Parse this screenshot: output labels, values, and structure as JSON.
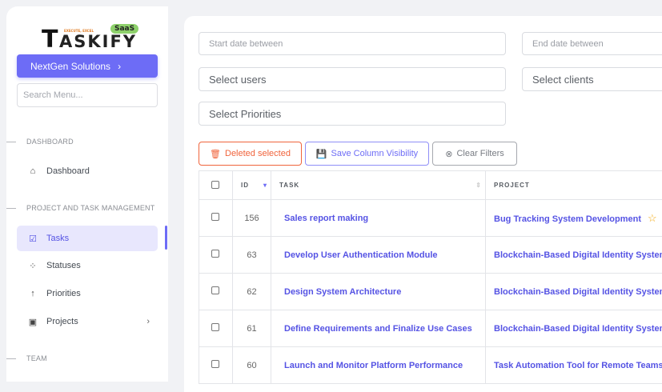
{
  "sidebar": {
    "logo": {
      "letter": "T",
      "rest": "ASKIFY",
      "tagline": "EXECUTE, EXCEL",
      "badge": "SaaS"
    },
    "org_button": "NextGen Solutions",
    "search_placeholder": "Search Menu...",
    "sections": [
      "DASHBOARD",
      "PROJECT AND TASK MANAGEMENT",
      "TEAM"
    ],
    "items": [
      {
        "label": "Dashboard",
        "icon": "home-icon"
      },
      {
        "label": "Tasks",
        "icon": "clipboard-check-icon",
        "active": true
      },
      {
        "label": "Statuses",
        "icon": "grid-dots-icon"
      },
      {
        "label": "Priorities",
        "icon": "arrow-up-icon"
      },
      {
        "label": "Projects",
        "icon": "briefcase-icon"
      }
    ]
  },
  "filters": {
    "start_date": "Start date between",
    "end_date": "End date between",
    "users": "Select users",
    "clients": "Select clients",
    "priorities": "Select Priorities"
  },
  "actions": {
    "delete": "Deleted selected",
    "save": "Save Column Visibility",
    "clear": "Clear Filters"
  },
  "colors": {
    "accent": "#6d6cf6",
    "danger": "#f0643c",
    "star": "#f2a90f"
  },
  "table": {
    "headers": [
      "ID",
      "TASK",
      "PROJECT"
    ],
    "rows": [
      {
        "id": "156",
        "task": "Sales report making",
        "project": "Bug Tracking System Development",
        "favorite": true
      },
      {
        "id": "63",
        "task": "Develop User Authentication Module",
        "project": "Blockchain-Based Digital Identity System"
      },
      {
        "id": "62",
        "task": "Design System Architecture",
        "project": "Blockchain-Based Digital Identity System"
      },
      {
        "id": "61",
        "task": "Define Requirements and Finalize Use Cases",
        "project": "Blockchain-Based Digital Identity System"
      },
      {
        "id": "60",
        "task": "Launch and Monitor Platform Performance",
        "project": "Task Automation Tool for Remote Teams"
      }
    ]
  }
}
